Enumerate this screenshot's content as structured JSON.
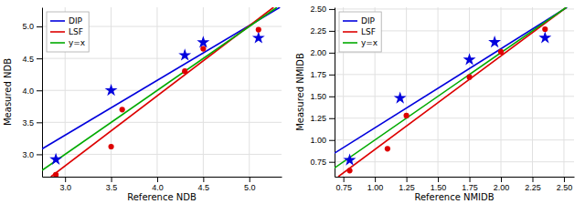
{
  "chart_data": [
    {
      "type": "scatter",
      "xlabel": "Reference NDB",
      "ylabel": "Measured NDB",
      "xlim": [
        2.75,
        5.35
      ],
      "ylim": [
        2.65,
        5.3
      ],
      "xticks": [
        {
          "value": 3.0,
          "label": "3.0"
        },
        3.5,
        {
          "value": 4.0,
          "label": "4.0"
        },
        4.5,
        {
          "value": 5.0,
          "label": "5.0"
        }
      ],
      "yticks": [
        {
          "value": 3.0,
          "label": "3.0"
        },
        3.5,
        {
          "value": 4.0,
          "label": "4.0"
        },
        4.5,
        {
          "value": 5.0,
          "label": "5.0"
        }
      ],
      "grid": true,
      "legend": "upper left",
      "series": [
        {
          "name": "DIP",
          "type": "line",
          "color": "#0000dd",
          "x": [
            2.75,
            5.3325
          ],
          "values": [
            3.0838,
            5.3
          ]
        },
        {
          "name": "LSF",
          "type": "line",
          "color": "#dd0000",
          "x": [
            2.8468,
            5.2633
          ],
          "values": [
            2.65,
            5.3
          ]
        },
        {
          "name": "y=x",
          "type": "line",
          "color": "#00aa00",
          "x": [
            2.75,
            5.3
          ],
          "values": [
            2.75,
            5.3
          ]
        },
        {
          "type": "scatter",
          "marker": "star",
          "color": "#0000dd",
          "x": [
            2.9,
            3.5,
            4.3,
            4.5,
            5.1
          ],
          "values": [
            2.92,
            4.0,
            4.55,
            4.75,
            4.82
          ]
        },
        {
          "type": "scatter",
          "marker": "circle",
          "color": "#dd0000",
          "x": [
            2.9,
            3.5,
            3.62,
            4.3,
            4.5,
            5.1
          ],
          "values": [
            2.68,
            3.12,
            3.7,
            4.3,
            4.65,
            4.95
          ]
        }
      ]
    },
    {
      "type": "scatter",
      "xlabel": "Reference NMIDB",
      "ylabel": "Measured NMIDB",
      "xlim": [
        0.68,
        2.58
      ],
      "ylim": [
        0.58,
        2.52
      ],
      "xticks": [
        0.75,
        {
          "value": 1.0,
          "label": "1.00"
        },
        1.25,
        {
          "value": 1.5,
          "label": "1.50"
        },
        1.75,
        {
          "value": 2.0,
          "label": "2.00"
        },
        2.25,
        {
          "value": 2.5,
          "label": "2.50"
        }
      ],
      "yticks": [
        0.75,
        {
          "value": 1.0,
          "label": "1.00"
        },
        1.25,
        {
          "value": 1.5,
          "label": "1.50"
        },
        1.75,
        {
          "value": 2.0,
          "label": "2.00"
        },
        2.25,
        {
          "value": 2.5,
          "label": "2.50"
        }
      ],
      "grid": true,
      "legend": "upper left",
      "series": [
        {
          "name": "DIP",
          "type": "line",
          "color": "#0000dd",
          "x": [
            0.68,
            2.5242
          ],
          "values": [
            0.8497,
            2.52
          ]
        },
        {
          "name": "LSF",
          "type": "line",
          "color": "#dd0000",
          "x": [
            0.7096,
            2.5199
          ],
          "values": [
            0.58,
            2.52
          ]
        },
        {
          "name": "y=x",
          "type": "line",
          "color": "#00aa00",
          "x": [
            0.68,
            2.52
          ],
          "values": [
            0.68,
            2.52
          ]
        },
        {
          "type": "scatter",
          "marker": "star",
          "color": "#0000dd",
          "x": [
            0.8,
            1.2,
            1.75,
            1.95,
            2.35
          ],
          "values": [
            0.77,
            1.48,
            1.92,
            2.12,
            2.17
          ]
        },
        {
          "type": "scatter",
          "marker": "circle",
          "color": "#dd0000",
          "x": [
            0.8,
            1.1,
            1.25,
            1.75,
            2.0,
            2.35
          ],
          "values": [
            0.65,
            0.9,
            1.28,
            1.72,
            2.01,
            2.27
          ]
        }
      ]
    }
  ]
}
